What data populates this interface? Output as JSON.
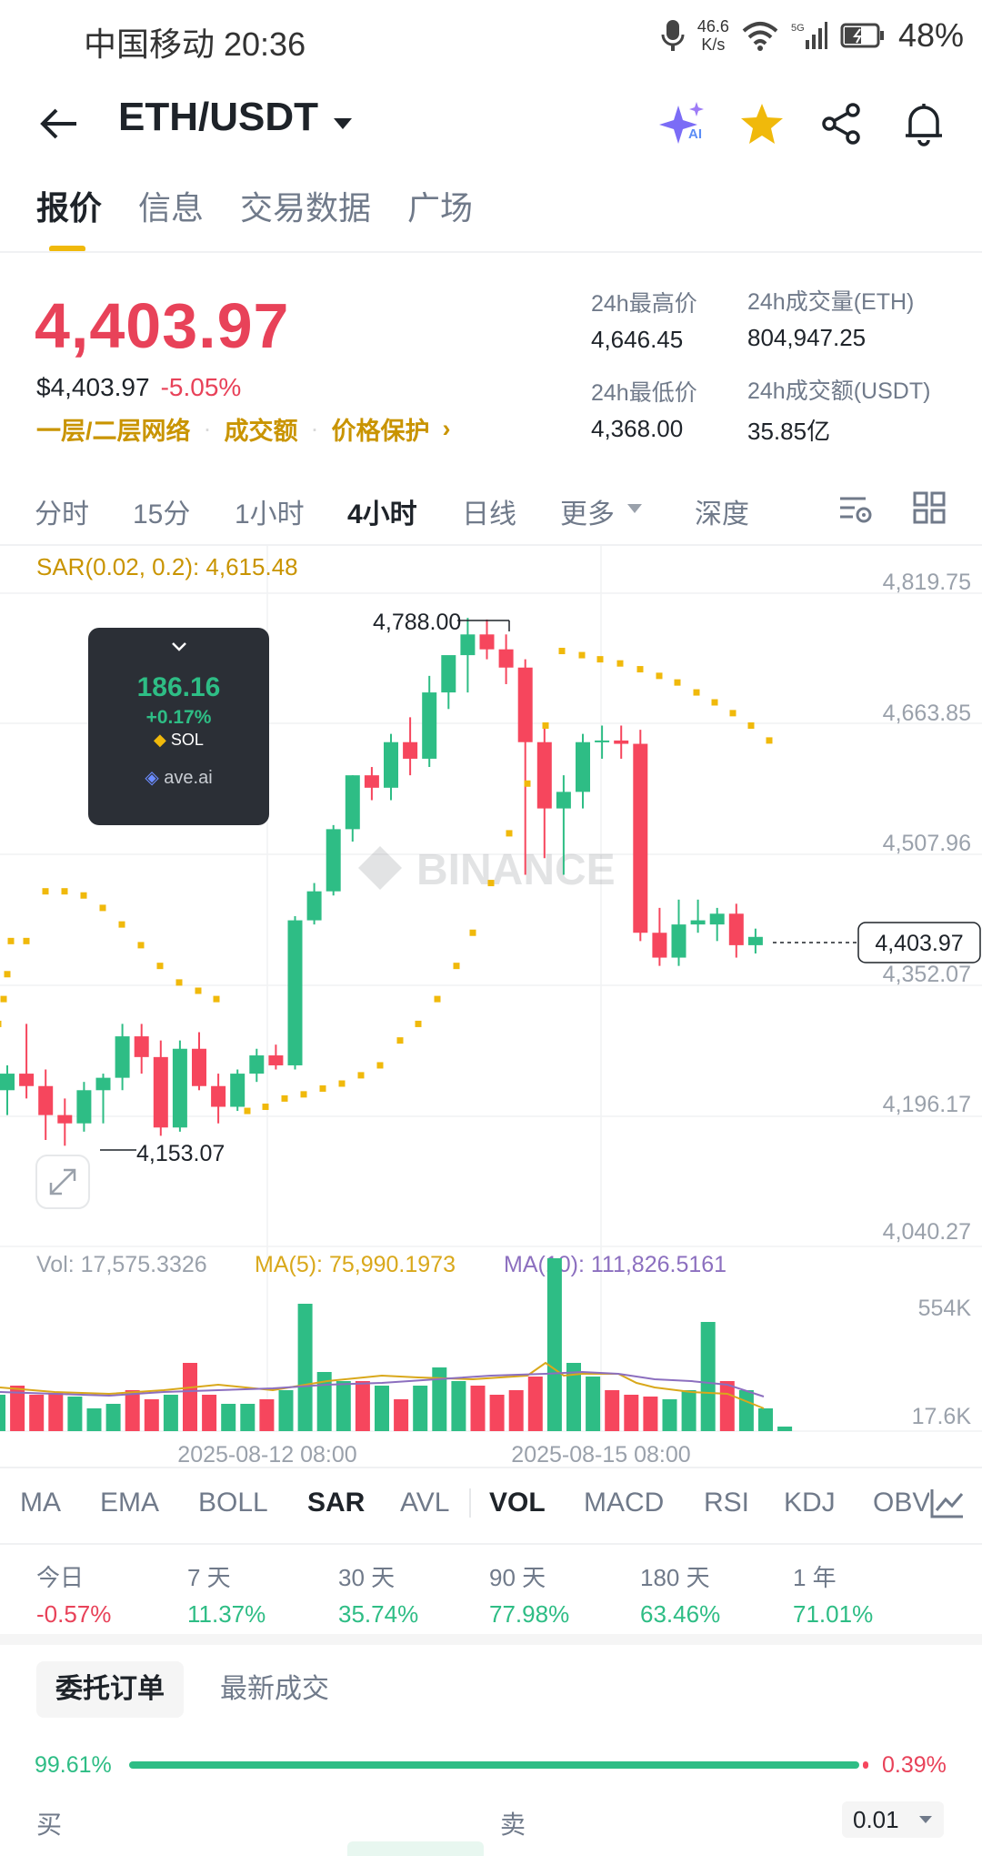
{
  "status_bar": {
    "carrier_time": "中国移动 20:36",
    "net_speed_value": "46.6",
    "net_speed_unit": "K/s",
    "battery": "48%",
    "icons": [
      "mic-icon",
      "wifi-icon",
      "signal-icon",
      "battery-icon"
    ]
  },
  "header": {
    "pair": "ETH/USDT",
    "icons": [
      "back-arrow-icon",
      "dropdown-caret-icon",
      "ai-sparkle-icon",
      "star-icon",
      "share-icon",
      "bell-icon"
    ],
    "star_color": "#f0b90b"
  },
  "tabs": [
    {
      "label": "报价",
      "active": true
    },
    {
      "label": "信息",
      "active": false
    },
    {
      "label": "交易数据",
      "active": false
    },
    {
      "label": "广场",
      "active": false
    }
  ],
  "price": {
    "last": "4,403.97",
    "usd_value": "$4,403.97",
    "change": "-5.05%",
    "links": [
      "一层/二层网络",
      "成交额",
      "价格保护"
    ]
  },
  "stats": {
    "high_label": "24h最高价",
    "high_value": "4,646.45",
    "low_label": "24h最低价",
    "low_value": "4,368.00",
    "vol_eth_label": "24h成交量(ETH)",
    "vol_eth_value": "804,947.25",
    "vol_usdt_label": "24h成交额(USDT)",
    "vol_usdt_value": "35.85亿"
  },
  "timeframes": [
    {
      "label": "分时",
      "active": false
    },
    {
      "label": "15分",
      "active": false
    },
    {
      "label": "1小时",
      "active": false
    },
    {
      "label": "4小时",
      "active": true
    },
    {
      "label": "日线",
      "active": false
    },
    {
      "label": "更多",
      "active": false
    },
    {
      "label": "深度",
      "active": false
    }
  ],
  "chart": {
    "sar_label": "SAR(0.02, 0.2): 4,615.48",
    "watermark": "BINANCE",
    "high_annotation": "4,788.00",
    "low_annotation": "4,153.07",
    "current_price_tag": "4,403.97",
    "y_axis_labels": [
      "4,819.75",
      "4,663.85",
      "4,507.96",
      "4,352.07",
      "4,196.17",
      "4,040.27"
    ],
    "vol_label": "Vol: 17,575.3326",
    "ma5_label": "MA(5): 75,990.1973",
    "ma10_label": "MA(10): 111,826.5161",
    "vol_axis_labels": [
      "554K",
      "17.6K"
    ],
    "x_axis_labels": [
      "2025-08-12 08:00",
      "2025-08-15 08:00"
    ],
    "up_color": "#2ebd85",
    "down_color": "#f6465d",
    "sar_color": "#f0b90b"
  },
  "popup": {
    "price": "186.16",
    "change": "+0.17%",
    "symbol": "SOL",
    "source": "ave.ai"
  },
  "indicators": [
    {
      "label": "MA",
      "active": false
    },
    {
      "label": "EMA",
      "active": false
    },
    {
      "label": "BOLL",
      "active": false
    },
    {
      "label": "SAR",
      "active": true
    },
    {
      "label": "AVL",
      "active": false
    },
    {
      "label": "VOL",
      "active": true
    },
    {
      "label": "MACD",
      "active": false
    },
    {
      "label": "RSI",
      "active": false
    },
    {
      "label": "KDJ",
      "active": false
    },
    {
      "label": "OBV",
      "active": false
    }
  ],
  "performance": [
    {
      "label": "今日",
      "value": "-0.57%",
      "up": false
    },
    {
      "label": "7 天",
      "value": "11.37%",
      "up": true
    },
    {
      "label": "30 天",
      "value": "35.74%",
      "up": true
    },
    {
      "label": "90 天",
      "value": "77.98%",
      "up": true
    },
    {
      "label": "180 天",
      "value": "63.46%",
      "up": true
    },
    {
      "label": "1 年",
      "value": "71.01%",
      "up": true
    }
  ],
  "orderbook": {
    "tabs": [
      "委托订单",
      "最新成交"
    ],
    "buy_pct": "99.61%",
    "sell_pct": "0.39%",
    "buy_ratio": 0.9961,
    "buy_label": "买",
    "sell_label": "卖",
    "precision": "0.01"
  }
}
